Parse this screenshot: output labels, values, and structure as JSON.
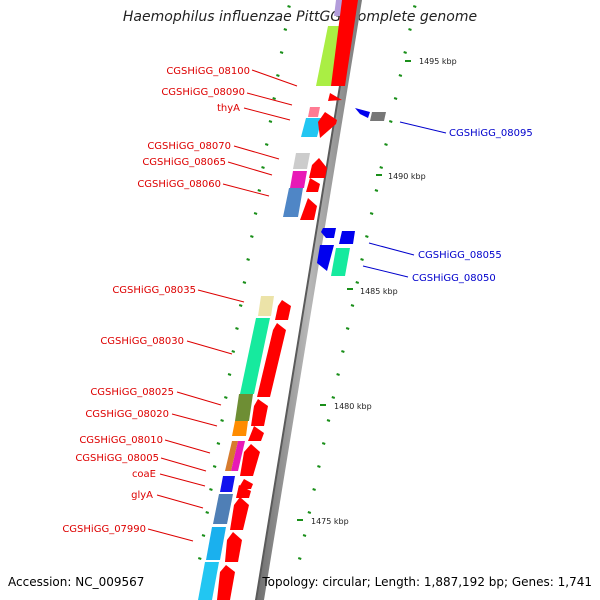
{
  "title": "Haemophilus influenzae PittGG, complete genome",
  "footer": {
    "accession": "Accession: NC_009567",
    "topology": "Topology: circular; Length: 1,887,192 bp; Genes: 1,741"
  },
  "colors": {
    "label_left": "#dd0000",
    "label_right": "#0000cc",
    "backbone": "#9a9a9a",
    "strand_arrow_fwd": "#ff0000",
    "strand_arrow_rev": "#0000ee",
    "tick": "#1a8f1a"
  },
  "scale_labels": [
    "1495 kbp",
    "1490 kbp",
    "1485 kbp",
    "1480 kbp",
    "1475 kbp"
  ],
  "gene_labels_left": [
    "CGSHiGG_08100",
    "CGSHiGG_08090",
    "thyA",
    "CGSHiGG_08070",
    "CGSHiGG_08065",
    "CGSHiGG_08060",
    "CGSHiGG_08035",
    "CGSHiGG_08030",
    "CGSHiGG_08025",
    "CGSHiGG_08020",
    "CGSHiGG_08010",
    "CGSHiGG_08005",
    "coaE",
    "glyA",
    "CGSHiGG_07990"
  ],
  "gene_labels_right": [
    "CGSHiGG_08095",
    "CGSHiGG_08055",
    "CGSHiGG_08050"
  ]
}
